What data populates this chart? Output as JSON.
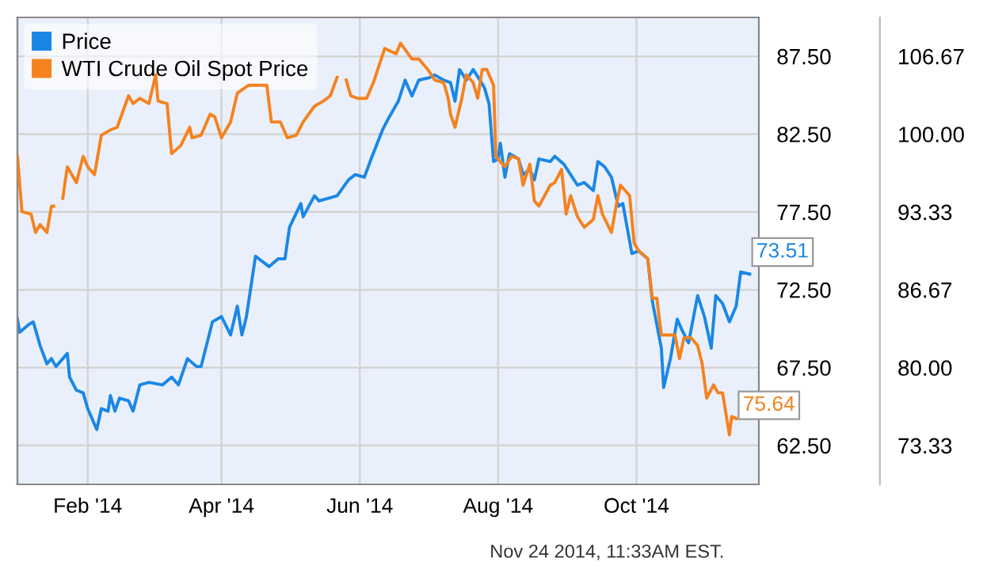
{
  "chart_data": {
    "type": "line",
    "x": [
      "2014-01-01",
      "2014-01-02",
      "2014-01-06",
      "2014-01-08",
      "2014-01-11",
      "2014-01-14",
      "2014-01-16",
      "2014-01-18",
      "2014-01-23",
      "2014-01-24",
      "2014-01-27",
      "2014-01-30",
      "2014-02-01",
      "2014-02-05",
      "2014-02-07",
      "2014-02-10",
      "2014-02-11",
      "2014-02-13",
      "2014-02-15",
      "2014-02-19",
      "2014-02-21",
      "2014-02-24",
      "2014-02-28",
      "2014-03-06",
      "2014-03-10",
      "2014-03-13",
      "2014-03-17",
      "2014-03-21",
      "2014-03-23",
      "2014-03-28",
      "2014-04-01",
      "2014-04-05",
      "2014-04-08",
      "2014-04-10",
      "2014-04-12",
      "2014-04-16",
      "2014-04-22",
      "2014-04-26",
      "2014-04-29",
      "2014-05-01",
      "2014-05-06",
      "2014-05-07",
      "2014-05-12",
      "2014-05-14",
      "2014-05-18",
      "2014-05-22",
      "2014-05-27",
      "2014-05-30",
      "2014-06-03",
      "2014-06-06",
      "2014-06-11",
      "2014-06-14",
      "2014-06-18",
      "2014-06-21",
      "2014-06-24",
      "2014-06-27",
      "2014-07-02",
      "2014-07-04",
      "2014-07-08",
      "2014-07-11",
      "2014-07-13",
      "2014-07-15",
      "2014-07-18",
      "2014-07-21",
      "2014-07-24",
      "2014-07-26",
      "2014-07-28",
      "2014-07-30",
      "2014-08-01",
      "2014-08-02",
      "2014-08-04",
      "2014-08-06",
      "2014-08-10",
      "2014-08-12",
      "2014-08-15",
      "2014-08-17",
      "2014-08-19",
      "2014-08-24",
      "2014-08-26",
      "2014-08-30",
      "2014-09-02",
      "2014-09-05",
      "2014-09-08",
      "2014-09-12",
      "2014-09-14",
      "2014-09-17",
      "2014-09-20",
      "2014-09-23",
      "2014-09-25",
      "2014-09-29",
      "2014-10-02",
      "2014-10-06",
      "2014-10-08",
      "2014-10-12",
      "2014-10-13",
      "2014-10-16",
      "2014-10-19",
      "2014-10-21",
      "2014-10-24",
      "2014-10-28",
      "2014-10-31",
      "2014-11-03",
      "2014-11-05",
      "2014-11-08",
      "2014-11-11",
      "2014-11-14",
      "2014-11-16",
      "2014-11-20"
    ],
    "series": [
      {
        "name": "Price",
        "color": "#1a87e6",
        "values": [
          70.61,
          69.77,
          70.27,
          70.44,
          68.92,
          67.74,
          68.08,
          67.57,
          68.41,
          66.89,
          66.05,
          65.88,
          64.87,
          63.52,
          64.87,
          64.7,
          65.71,
          64.7,
          65.54,
          65.37,
          64.7,
          66.39,
          66.55,
          66.39,
          66.89,
          66.39,
          68.08,
          67.57,
          67.57,
          70.44,
          70.78,
          69.6,
          71.45,
          69.6,
          70.78,
          74.66,
          73.99,
          74.49,
          74.49,
          76.52,
          78.04,
          77.19,
          78.54,
          78.21,
          78.38,
          78.54,
          79.56,
          79.9,
          79.73,
          80.91,
          82.77,
          83.61,
          84.62,
          85.97,
          84.96,
          85.97,
          86.14,
          86.31,
          85.97,
          85.81,
          84.62,
          86.65,
          85.97,
          86.65,
          85.97,
          85.47,
          84.46,
          80.74,
          80.91,
          81.92,
          79.73,
          81.24,
          80.91,
          79.9,
          80.23,
          79.56,
          80.91,
          80.74,
          81.08,
          80.57,
          79.9,
          79.22,
          79.39,
          78.88,
          80.74,
          80.4,
          79.73,
          77.87,
          78.04,
          74.83,
          75.0,
          74.49,
          71.79,
          68.75,
          66.22,
          68.08,
          70.61,
          69.94,
          69.09,
          72.13,
          70.78,
          68.75,
          72.13,
          71.62,
          70.44,
          71.45,
          73.65,
          73.51
        ],
        "value_labels": [
          null,
          null,
          null,
          null,
          null,
          null,
          null,
          null,
          null,
          null,
          null,
          null,
          null,
          null,
          null,
          null,
          null,
          null,
          null,
          null,
          null,
          null,
          null,
          null,
          null,
          null,
          null,
          null,
          null,
          null,
          null,
          null,
          null,
          null,
          null,
          null,
          null,
          null,
          null,
          null,
          null,
          null,
          null,
          null,
          null,
          null,
          null,
          null,
          null,
          null,
          null,
          null,
          null,
          null,
          null,
          null,
          null,
          null,
          null,
          null,
          null,
          null,
          null,
          null,
          null,
          null,
          null,
          null,
          null,
          null,
          null,
          null,
          null,
          null,
          null,
          null,
          null,
          null,
          null,
          null,
          null,
          null,
          null,
          null,
          null,
          null,
          null,
          null,
          null,
          null,
          null,
          null,
          null,
          null,
          null,
          null,
          null,
          null,
          null,
          null,
          null,
          null,
          null,
          null,
          null,
          null,
          null,
          "73.51"
        ]
      },
      {
        "name": "WTI Crude Oil Spot Price",
        "color": "#f5821f",
        "axis": "y2",
        "x": [
          "2014-01-01",
          "2014-01-03",
          "2014-01-07",
          "2014-01-09",
          "2014-01-11",
          "2014-01-14",
          "2014-01-16",
          "2014-01-17",
          "2014-01-20",
          "2014-01-21",
          "2014-01-23",
          "2014-01-27",
          "2014-01-30",
          "2014-02-01",
          "2014-02-04",
          "2014-02-07",
          "2014-02-11",
          "2014-02-14",
          "2014-02-19",
          "2014-02-21",
          "2014-02-24",
          "2014-02-28",
          "2014-03-03",
          "2014-03-04",
          "2014-03-08",
          "2014-03-10",
          "2014-03-14",
          "2014-03-18",
          "2014-03-19",
          "2014-03-23",
          "2014-03-27",
          "2014-03-29",
          "2014-04-01",
          "2014-04-05",
          "2014-04-08",
          "2014-04-13",
          "2014-04-21",
          "2014-04-23",
          "2014-04-27",
          "2014-04-30",
          "2014-05-04",
          "2014-05-07",
          "2014-05-12",
          "2014-05-16",
          "2014-05-19",
          "2014-05-22",
          "2014-05-25",
          "2014-05-26",
          "2014-05-28",
          "2014-05-31",
          "2014-06-04",
          "2014-06-07",
          "2014-06-12",
          "2014-06-17",
          "2014-06-19",
          "2014-06-24",
          "2014-06-27",
          "2014-07-01",
          "2014-07-04",
          "2014-07-08",
          "2014-07-10",
          "2014-07-11",
          "2014-07-13",
          "2014-07-16",
          "2014-07-18",
          "2014-07-21",
          "2014-07-23",
          "2014-07-25",
          "2014-07-27",
          "2014-07-30",
          "2014-07-31",
          "2014-08-02",
          "2014-08-04",
          "2014-08-07",
          "2014-08-10",
          "2014-08-12",
          "2014-08-15",
          "2014-08-17",
          "2014-08-19",
          "2014-08-24",
          "2014-08-26",
          "2014-08-29",
          "2014-08-31",
          "2014-09-02",
          "2014-09-05",
          "2014-09-08",
          "2014-09-12",
          "2014-09-14",
          "2014-09-16",
          "2014-09-20",
          "2014-09-22",
          "2014-09-24",
          "2014-09-28",
          "2014-09-30",
          "2014-10-02",
          "2014-10-06",
          "2014-10-08",
          "2014-10-10",
          "2014-10-12",
          "2014-10-15",
          "2014-10-18",
          "2014-10-20",
          "2014-10-22",
          "2014-10-25",
          "2014-10-28",
          "2014-10-30",
          "2014-11-01",
          "2014-11-04",
          "2014-11-06",
          "2014-11-08",
          "2014-11-11",
          "2014-11-12",
          "2014-11-14"
        ],
        "values": [
          98.1,
          93.37,
          93.15,
          91.57,
          92.25,
          91.57,
          93.83,
          93.83,
          null,
          94.5,
          97.2,
          95.85,
          98.1,
          97.2,
          96.53,
          99.91,
          100.36,
          100.59,
          103.29,
          102.62,
          103.07,
          102.62,
          105.09,
          102.84,
          102.62,
          98.33,
          99.01,
          100.59,
          99.69,
          99.91,
          101.71,
          101.49,
          99.69,
          101.04,
          103.52,
          104.19,
          104.19,
          101.04,
          101.04,
          99.69,
          99.91,
          101.04,
          102.39,
          102.84,
          103.29,
          104.87,
          null,
          104.64,
          103.29,
          103.07,
          103.07,
          104.42,
          107.34,
          106.89,
          107.79,
          106.44,
          106.44,
          105.54,
          104.64,
          104.42,
          103.07,
          101.71,
          100.59,
          103.07,
          105.09,
          104.42,
          103.07,
          105.54,
          105.54,
          104.19,
          98.1,
          97.65,
          97.2,
          98.1,
          97.88,
          95.63,
          97.43,
          94.28,
          93.83,
          95.63,
          95.85,
          96.98,
          93.15,
          94.73,
          92.93,
          92.02,
          92.7,
          94.73,
          93.15,
          91.57,
          93.83,
          95.63,
          94.73,
          90.68,
          90.0,
          89.33,
          85.95,
          85.95,
          82.8,
          82.8,
          82.8,
          80.77,
          82.57,
          82.57,
          81.89,
          80.32,
          77.39,
          78.52,
          77.84,
          77.84,
          74.24,
          75.82,
          75.64
        ],
        "value_labels": [
          null,
          null,
          null,
          null,
          null,
          null,
          null,
          null,
          null,
          null,
          null,
          null,
          null,
          null,
          null,
          null,
          null,
          null,
          null,
          null,
          null,
          null,
          null,
          null,
          null,
          null,
          null,
          null,
          null,
          null,
          null,
          null,
          null,
          null,
          null,
          null,
          null,
          null,
          null,
          null,
          null,
          null,
          null,
          null,
          null,
          null,
          null,
          null,
          null,
          null,
          null,
          null,
          null,
          null,
          null,
          null,
          null,
          null,
          null,
          null,
          null,
          null,
          null,
          null,
          null,
          null,
          null,
          null,
          null,
          null,
          null,
          null,
          null,
          null,
          null,
          null,
          null,
          null,
          null,
          null,
          null,
          null,
          null,
          null,
          null,
          null,
          null,
          null,
          null,
          null,
          null,
          null,
          null,
          null,
          null,
          null,
          null,
          null,
          null,
          null,
          null,
          null,
          null,
          null,
          null,
          null,
          null,
          null,
          null,
          null,
          null,
          null,
          "75.64"
        ]
      }
    ],
    "xlim": [
      "2014-01-01",
      "2014-11-24"
    ],
    "xticks": [
      {
        "value": "2014-02-01",
        "label": "Feb '14"
      },
      {
        "value": "2014-04-01",
        "label": "Apr '14"
      },
      {
        "value": "2014-06-01",
        "label": "Jun '14"
      },
      {
        "value": "2014-08-01",
        "label": "Aug '14"
      },
      {
        "value": "2014-10-01",
        "label": "Oct '14"
      }
    ],
    "ylim": [
      60,
      90
    ],
    "yticks": [
      {
        "value": 62.5,
        "label": "62.50"
      },
      {
        "value": 67.5,
        "label": "67.50"
      },
      {
        "value": 72.5,
        "label": "72.50"
      },
      {
        "value": 77.5,
        "label": "77.50"
      },
      {
        "value": 82.5,
        "label": "82.50"
      },
      {
        "value": 87.5,
        "label": "87.50"
      }
    ],
    "y2lim": [
      70,
      110
    ],
    "y2ticks": [
      {
        "value": 73.33,
        "label": "73.33"
      },
      {
        "value": 80,
        "label": "80.00"
      },
      {
        "value": 86.67,
        "label": "86.67"
      },
      {
        "value": 93.33,
        "label": "93.33"
      },
      {
        "value": 100,
        "label": "100.00"
      },
      {
        "value": 106.67,
        "label": "106.67"
      }
    ],
    "grid": true,
    "legend": "top left",
    "marker": "none",
    "line_style": "solid",
    "annotations": [
      "Nov 24 2014, 11:33AM EST."
    ]
  }
}
